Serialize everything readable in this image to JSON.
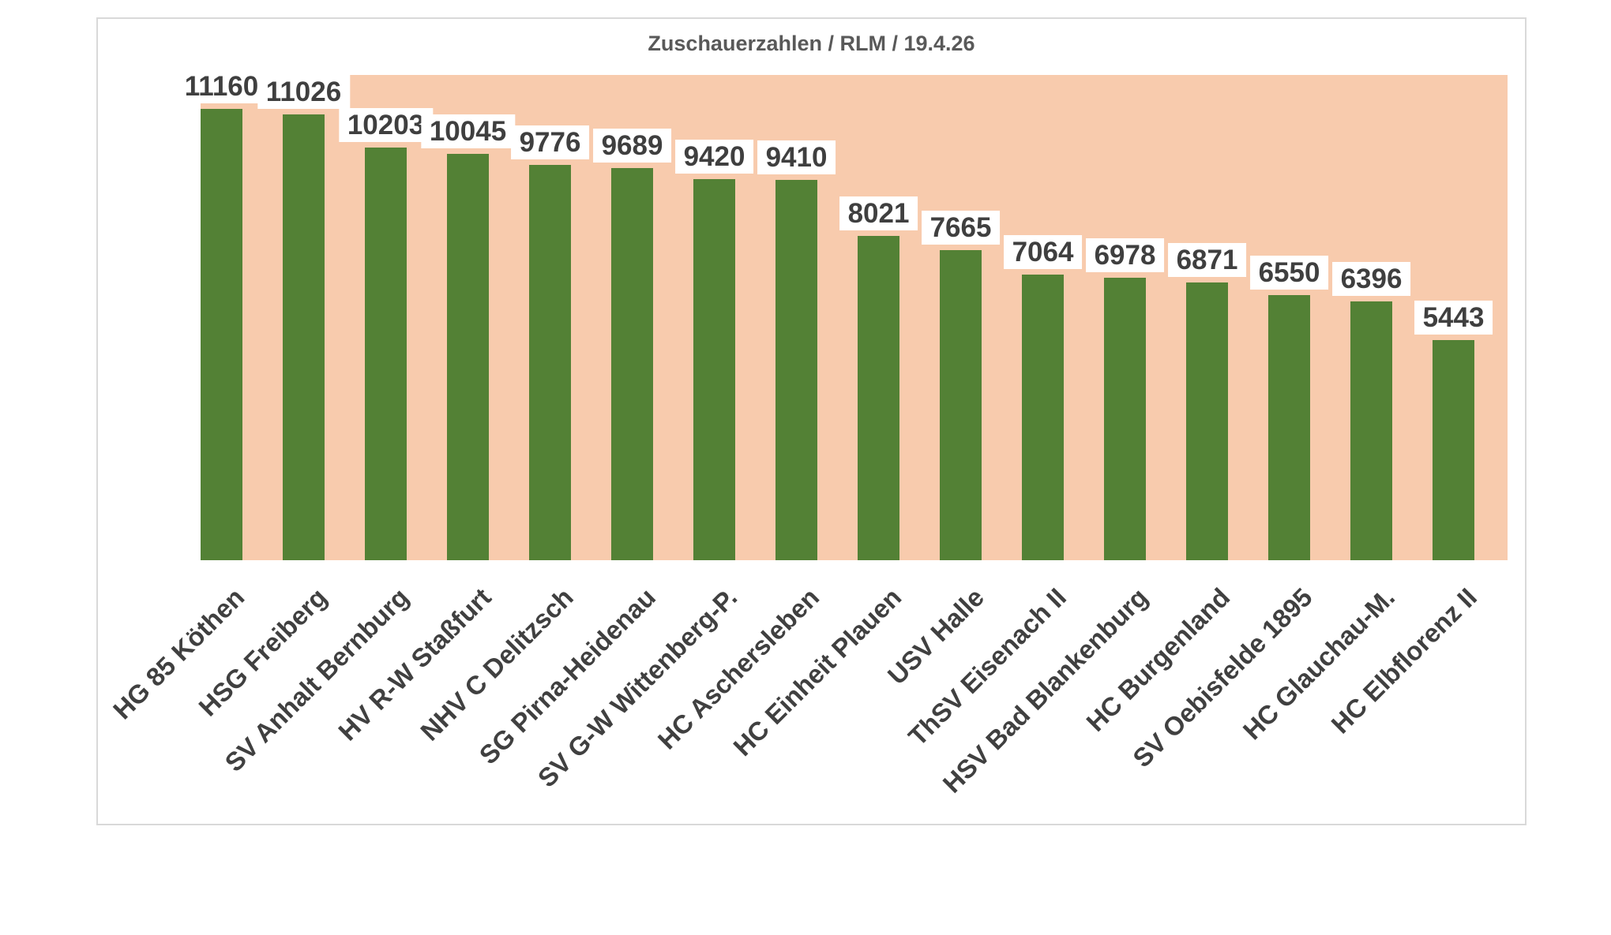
{
  "chart_data": {
    "type": "bar",
    "title": "Zuschauerzahlen / RLM / 19.4.26",
    "categories": [
      "HG 85 Köthen",
      "HSG Freiberg",
      "SV Anhalt Bernburg",
      "HV R-W Staßfurt",
      "NHV C Delitzsch",
      "SG Pirna-Heidenau",
      "SV G-W Wittenberg-P.",
      "HC Aschersleben",
      "HC Einheit Plauen",
      "USV Halle",
      "ThSV Eisenach II",
      "HSV Bad Blankenburg",
      "HC Burgenland",
      "SV Oebisfelde 1895",
      "HC Glauchau-M.",
      "HC Elbflorenz II"
    ],
    "values": [
      11160,
      11026,
      10203,
      10045,
      9776,
      9689,
      9420,
      9410,
      8021,
      7665,
      7064,
      6978,
      6871,
      6550,
      6396,
      5443
    ],
    "xlabel": "",
    "ylabel": "",
    "ylim": [
      0,
      12000
    ],
    "grid": false,
    "legend": false,
    "data_labels": true,
    "category_label_rotation_deg": -45,
    "colors": {
      "bar": "#538135",
      "plot_background": "#f8cbad",
      "value_label_text": "#3f3f3f",
      "value_label_background": "#ffffff",
      "category_label_text": "#404040",
      "title_text": "#595959",
      "card_border": "#d9d9d9",
      "card_background": "#ffffff"
    }
  }
}
